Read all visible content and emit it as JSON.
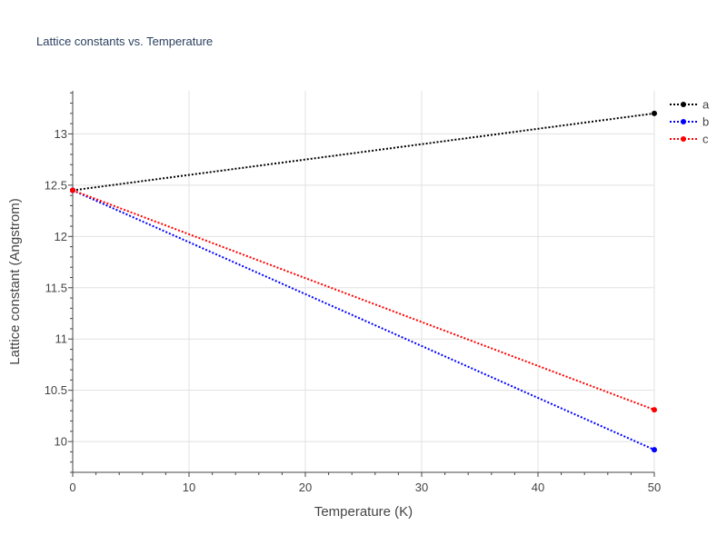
{
  "chart_data": {
    "type": "line",
    "title": "Lattice constants vs. Temperature",
    "xlabel": "Temperature (K)",
    "ylabel": "Lattice constant (Angstrom)",
    "xlim": [
      0,
      50
    ],
    "ylim": [
      9.7,
      13.42
    ],
    "xticks": [
      0,
      10,
      20,
      30,
      40,
      50
    ],
    "yticks": [
      10,
      10.5,
      11,
      11.5,
      12,
      12.5,
      13
    ],
    "grid": true,
    "legend_position": "top-right",
    "line_style": "dotted",
    "series": [
      {
        "name": "a",
        "color": "#000000",
        "x": [
          0,
          50
        ],
        "y": [
          12.45,
          13.2
        ]
      },
      {
        "name": "b",
        "color": "#0000ff",
        "x": [
          0,
          50
        ],
        "y": [
          12.45,
          9.92
        ]
      },
      {
        "name": "c",
        "color": "#ff0000",
        "x": [
          0,
          50
        ],
        "y": [
          12.45,
          10.31
        ]
      }
    ]
  }
}
